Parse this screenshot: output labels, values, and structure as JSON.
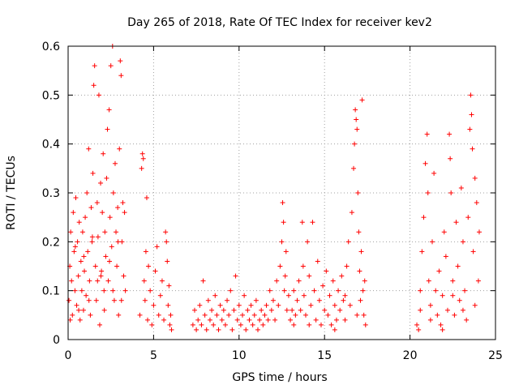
{
  "chart_data": {
    "type": "scatter",
    "title": "Day 265 of 2018, Rate Of TEC Index for receiver kev2",
    "xlabel": "GPS time / hours",
    "ylabel": "ROTI / TECUs",
    "xlim": [
      0,
      25
    ],
    "ylim": [
      0,
      0.6
    ],
    "xticks": [
      0,
      5,
      10,
      15,
      20,
      25
    ],
    "xtick_labels": [
      "0",
      "5",
      "10",
      "15",
      "20",
      "25"
    ],
    "yticks": [
      0,
      0.1,
      0.2,
      0.3,
      0.4,
      0.5,
      0.6
    ],
    "ytick_labels": [
      "0",
      "0.1",
      "0.2",
      "0.3",
      "0.4",
      "0.5",
      "0.6"
    ],
    "grid": true,
    "marker": "+",
    "color": "#ff0000",
    "series": [
      {
        "name": "",
        "points": [
          [
            0.05,
            0.08
          ],
          [
            0.1,
            0.15
          ],
          [
            0.15,
            0.22
          ],
          [
            0.2,
            0.12
          ],
          [
            0.25,
            0.05
          ],
          [
            0.3,
            0.26
          ],
          [
            0.35,
            0.18
          ],
          [
            0.4,
            0.1
          ],
          [
            0.45,
            0.29
          ],
          [
            0.5,
            0.07
          ],
          [
            0.55,
            0.2
          ],
          [
            0.6,
            0.13
          ],
          [
            0.65,
            0.24
          ],
          [
            0.7,
            0.04
          ],
          [
            0.75,
            0.16
          ],
          [
            0.8,
            0.1
          ],
          [
            0.85,
            0.22
          ],
          [
            0.9,
            0.06
          ],
          [
            0.95,
            0.14
          ],
          [
            1.0,
            0.25
          ],
          [
            1.05,
            0.09
          ],
          [
            1.1,
            0.3
          ],
          [
            1.15,
            0.18
          ],
          [
            1.2,
            0.39
          ],
          [
            1.25,
            0.12
          ],
          [
            1.3,
            0.05
          ],
          [
            1.35,
            0.27
          ],
          [
            1.4,
            0.2
          ],
          [
            1.45,
            0.34
          ],
          [
            1.5,
            0.52
          ],
          [
            1.55,
            0.56
          ],
          [
            1.6,
            0.15
          ],
          [
            1.65,
            0.08
          ],
          [
            1.7,
            0.28
          ],
          [
            1.75,
            0.21
          ],
          [
            1.8,
            0.5
          ],
          [
            1.85,
            0.03
          ],
          [
            1.9,
            0.32
          ],
          [
            1.95,
            0.14
          ],
          [
            2.0,
            0.26
          ],
          [
            2.05,
            0.38
          ],
          [
            2.1,
            0.1
          ],
          [
            2.15,
            0.22
          ],
          [
            2.2,
            0.17
          ],
          [
            2.25,
            0.33
          ],
          [
            2.3,
            0.43
          ],
          [
            2.35,
            0.12
          ],
          [
            2.4,
            0.47
          ],
          [
            2.45,
            0.25
          ],
          [
            2.5,
            0.56
          ],
          [
            2.55,
            0.19
          ],
          [
            2.6,
            0.6
          ],
          [
            2.65,
            0.3
          ],
          [
            2.7,
            0.08
          ],
          [
            2.75,
            0.36
          ],
          [
            2.8,
            0.22
          ],
          [
            2.85,
            0.15
          ],
          [
            2.9,
            0.27
          ],
          [
            2.95,
            0.05
          ],
          [
            3.0,
            0.39
          ],
          [
            3.05,
            0.57
          ],
          [
            3.1,
            0.54
          ],
          [
            3.15,
            0.2
          ],
          [
            3.2,
            0.28
          ],
          [
            3.25,
            0.13
          ],
          [
            3.3,
            0.26
          ],
          [
            3.35,
            0.1
          ],
          [
            0.12,
            0.04
          ],
          [
            0.62,
            0.06
          ],
          [
            1.22,
            0.08
          ],
          [
            1.72,
            0.12
          ],
          [
            2.12,
            0.06
          ],
          [
            2.62,
            0.1
          ],
          [
            3.12,
            0.08
          ],
          [
            0.42,
            0.19
          ],
          [
            0.92,
            0.17
          ],
          [
            1.42,
            0.21
          ],
          [
            1.92,
            0.13
          ],
          [
            2.42,
            0.16
          ],
          [
            2.92,
            0.2
          ],
          [
            4.2,
            0.05
          ],
          [
            4.3,
            0.35
          ],
          [
            4.35,
            0.38
          ],
          [
            4.4,
            0.37
          ],
          [
            4.45,
            0.12
          ],
          [
            4.5,
            0.08
          ],
          [
            4.55,
            0.18
          ],
          [
            4.6,
            0.29
          ],
          [
            4.65,
            0.04
          ],
          [
            4.7,
            0.15
          ],
          [
            4.8,
            0.1
          ],
          [
            4.9,
            0.03
          ],
          [
            5.0,
            0.07
          ],
          [
            5.1,
            0.14
          ],
          [
            5.2,
            0.19
          ],
          [
            5.3,
            0.05
          ],
          [
            5.4,
            0.09
          ],
          [
            5.5,
            0.12
          ],
          [
            5.6,
            0.04
          ],
          [
            5.7,
            0.22
          ],
          [
            5.75,
            0.2
          ],
          [
            5.8,
            0.16
          ],
          [
            5.85,
            0.07
          ],
          [
            5.9,
            0.11
          ],
          [
            5.95,
            0.03
          ],
          [
            6.0,
            0.05
          ],
          [
            6.05,
            0.02
          ],
          [
            7.3,
            0.03
          ],
          [
            7.4,
            0.06
          ],
          [
            7.5,
            0.02
          ],
          [
            7.6,
            0.04
          ],
          [
            7.7,
            0.07
          ],
          [
            7.8,
            0.03
          ],
          [
            7.9,
            0.12
          ],
          [
            8.0,
            0.05
          ],
          [
            8.1,
            0.02
          ],
          [
            8.2,
            0.08
          ],
          [
            8.3,
            0.04
          ],
          [
            8.4,
            0.06
          ],
          [
            8.5,
            0.03
          ],
          [
            8.6,
            0.09
          ],
          [
            8.7,
            0.05
          ],
          [
            8.8,
            0.02
          ],
          [
            8.9,
            0.07
          ],
          [
            9.0,
            0.04
          ],
          [
            9.1,
            0.06
          ],
          [
            9.2,
            0.03
          ],
          [
            9.3,
            0.08
          ],
          [
            9.4,
            0.05
          ],
          [
            9.5,
            0.1
          ],
          [
            9.6,
            0.02
          ],
          [
            9.7,
            0.06
          ],
          [
            9.8,
            0.13
          ],
          [
            9.9,
            0.04
          ],
          [
            10.0,
            0.07
          ],
          [
            10.1,
            0.03
          ],
          [
            10.2,
            0.05
          ],
          [
            10.3,
            0.09
          ],
          [
            10.4,
            0.02
          ],
          [
            10.5,
            0.06
          ],
          [
            10.6,
            0.04
          ],
          [
            10.7,
            0.07
          ],
          [
            10.8,
            0.03
          ],
          [
            10.9,
            0.05
          ],
          [
            11.0,
            0.08
          ],
          [
            11.1,
            0.02
          ],
          [
            11.2,
            0.04
          ],
          [
            11.3,
            0.06
          ],
          [
            11.4,
            0.03
          ],
          [
            11.5,
            0.05
          ],
          [
            11.6,
            0.07
          ],
          [
            11.7,
            0.04
          ],
          [
            11.8,
            0.1
          ],
          [
            11.9,
            0.06
          ],
          [
            12.0,
            0.08
          ],
          [
            12.1,
            0.04
          ],
          [
            12.2,
            0.12
          ],
          [
            12.3,
            0.07
          ],
          [
            12.4,
            0.15
          ],
          [
            12.5,
            0.2
          ],
          [
            12.55,
            0.28
          ],
          [
            12.6,
            0.24
          ],
          [
            12.65,
            0.1
          ],
          [
            12.7,
            0.13
          ],
          [
            12.75,
            0.18
          ],
          [
            12.8,
            0.06
          ],
          [
            12.9,
            0.09
          ],
          [
            13.0,
            0.04
          ],
          [
            13.1,
            0.06
          ],
          [
            13.2,
            0.03
          ],
          [
            13.3,
            0.05
          ],
          [
            13.4,
            0.08
          ],
          [
            13.5,
            0.12
          ],
          [
            13.6,
            0.06
          ],
          [
            13.7,
            0.24
          ],
          [
            13.75,
            0.15
          ],
          [
            13.8,
            0.09
          ],
          [
            13.9,
            0.05
          ],
          [
            14.0,
            0.2
          ],
          [
            14.1,
            0.13
          ],
          [
            14.2,
            0.07
          ],
          [
            14.3,
            0.24
          ],
          [
            14.4,
            0.1
          ],
          [
            14.5,
            0.04
          ],
          [
            14.6,
            0.16
          ],
          [
            14.7,
            0.08
          ],
          [
            14.8,
            0.03
          ],
          [
            14.9,
            0.11
          ],
          [
            15.0,
            0.06
          ],
          [
            15.1,
            0.14
          ],
          [
            15.2,
            0.05
          ],
          [
            15.3,
            0.09
          ],
          [
            15.4,
            0.03
          ],
          [
            15.5,
            0.12
          ],
          [
            15.6,
            0.07
          ],
          [
            15.7,
            0.04
          ],
          [
            15.8,
            0.1
          ],
          [
            15.9,
            0.06
          ],
          [
            16.0,
            0.13
          ],
          [
            16.1,
            0.08
          ],
          [
            16.2,
            0.04
          ],
          [
            16.3,
            0.15
          ],
          [
            16.4,
            0.2
          ],
          [
            16.5,
            0.07
          ],
          [
            16.6,
            0.26
          ],
          [
            16.7,
            0.35
          ],
          [
            16.75,
            0.4
          ],
          [
            16.8,
            0.47
          ],
          [
            16.85,
            0.45
          ],
          [
            16.9,
            0.43
          ],
          [
            16.95,
            0.3
          ],
          [
            17.0,
            0.22
          ],
          [
            17.05,
            0.14
          ],
          [
            17.1,
            0.08
          ],
          [
            17.15,
            0.18
          ],
          [
            17.2,
            0.49
          ],
          [
            17.25,
            0.1
          ],
          [
            17.3,
            0.05
          ],
          [
            17.35,
            0.12
          ],
          [
            17.4,
            0.03
          ],
          [
            13.2,
            0.1
          ],
          [
            14.1,
            0.03
          ],
          [
            15.6,
            0.02
          ],
          [
            16.2,
            0.09
          ],
          [
            16.9,
            0.05
          ],
          [
            20.4,
            0.03
          ],
          [
            20.5,
            0.02
          ],
          [
            20.6,
            0.06
          ],
          [
            20.7,
            0.18
          ],
          [
            20.8,
            0.25
          ],
          [
            20.9,
            0.36
          ],
          [
            21.0,
            0.42
          ],
          [
            21.05,
            0.3
          ],
          [
            21.1,
            0.12
          ],
          [
            21.2,
            0.07
          ],
          [
            21.3,
            0.2
          ],
          [
            21.4,
            0.34
          ],
          [
            21.5,
            0.1
          ],
          [
            21.6,
            0.05
          ],
          [
            21.7,
            0.14
          ],
          [
            21.8,
            0.03
          ],
          [
            21.9,
            0.09
          ],
          [
            22.0,
            0.22
          ],
          [
            22.1,
            0.17
          ],
          [
            22.2,
            0.06
          ],
          [
            22.3,
            0.42
          ],
          [
            22.35,
            0.37
          ],
          [
            22.4,
            0.3
          ],
          [
            22.5,
            0.12
          ],
          [
            22.6,
            0.05
          ],
          [
            22.7,
            0.24
          ],
          [
            22.8,
            0.15
          ],
          [
            22.9,
            0.08
          ],
          [
            23.0,
            0.31
          ],
          [
            23.1,
            0.2
          ],
          [
            23.2,
            0.1
          ],
          [
            23.3,
            0.04
          ],
          [
            23.4,
            0.25
          ],
          [
            23.5,
            0.43
          ],
          [
            23.55,
            0.5
          ],
          [
            23.6,
            0.46
          ],
          [
            23.65,
            0.39
          ],
          [
            23.7,
            0.18
          ],
          [
            23.8,
            0.33
          ],
          [
            23.9,
            0.28
          ],
          [
            24.0,
            0.12
          ],
          [
            24.05,
            0.22
          ],
          [
            20.6,
            0.1
          ],
          [
            21.2,
            0.04
          ],
          [
            21.9,
            0.02
          ],
          [
            22.5,
            0.09
          ],
          [
            23.1,
            0.06
          ],
          [
            23.8,
            0.07
          ]
        ]
      }
    ]
  }
}
